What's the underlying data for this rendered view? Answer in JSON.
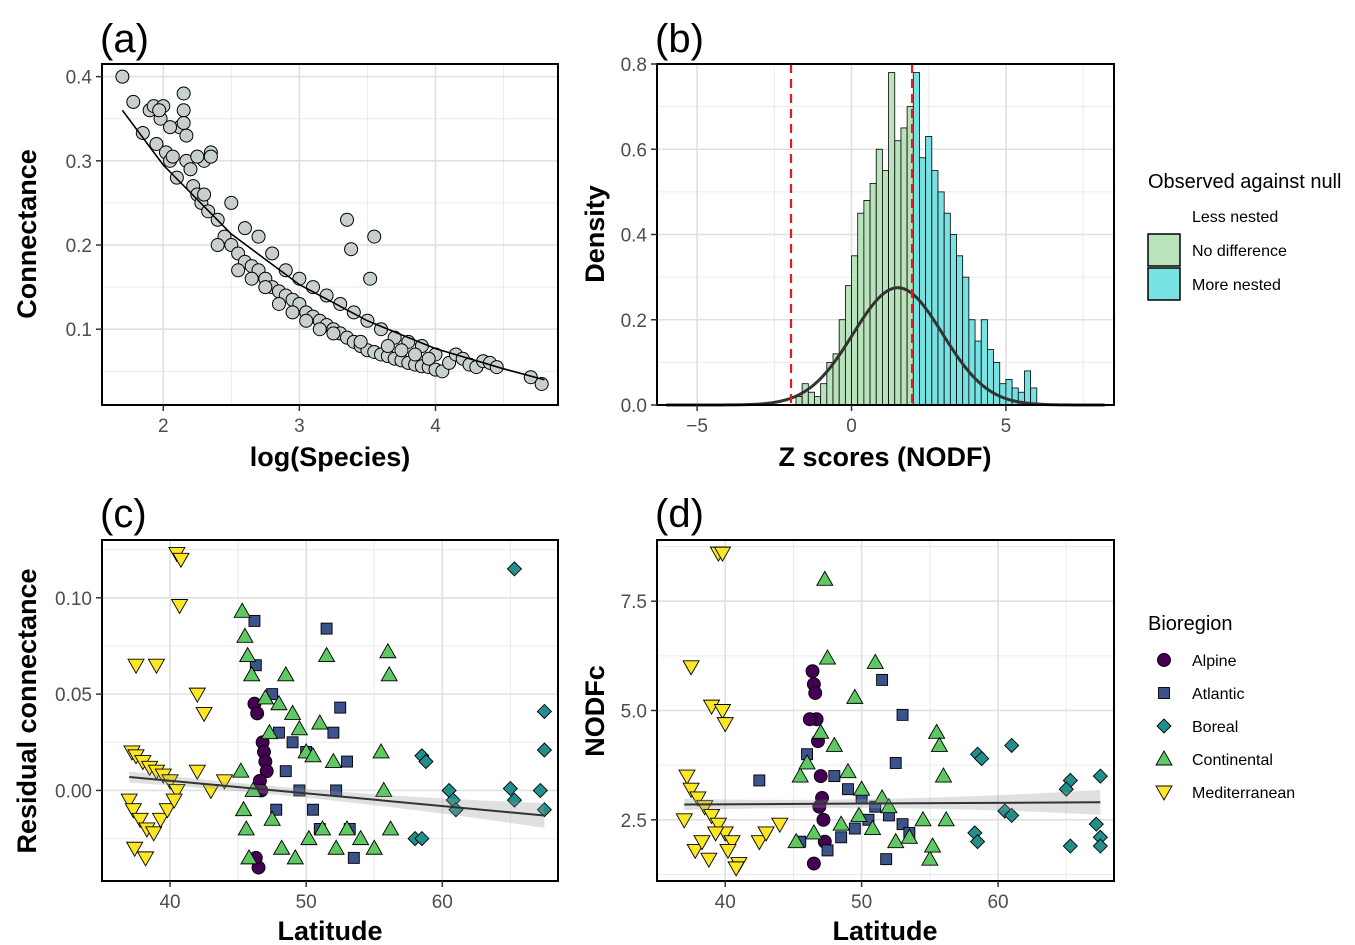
{
  "panels": {
    "a": {
      "tag": "(a)",
      "xlabel": "log(Species)",
      "ylabel": "Connectance",
      "xticks": [
        "2",
        "3",
        "4"
      ],
      "yticks": [
        "0.1",
        "0.2",
        "0.3",
        "0.4"
      ]
    },
    "b": {
      "tag": "(b)",
      "xlabel": "Z scores (NODF)",
      "ylabel": "Density",
      "xticks": [
        "−5",
        "0",
        "5"
      ],
      "yticks": [
        "0.0",
        "0.2",
        "0.4",
        "0.6",
        "0.8"
      ]
    },
    "c": {
      "tag": "(c)",
      "xlabel": "Latitude",
      "ylabel": "Residual connectance",
      "xticks": [
        "40",
        "50",
        "60"
      ],
      "yticks": [
        "0.00",
        "0.05",
        "0.10"
      ]
    },
    "d": {
      "tag": "(d)",
      "xlabel": "Latitude",
      "ylabel": "NODFc",
      "xticks": [
        "40",
        "50",
        "60"
      ],
      "yticks": [
        "2.5",
        "5.0",
        "7.5"
      ]
    }
  },
  "legend_null": {
    "title": "Observed against null",
    "items": [
      {
        "label": "Less nested",
        "color": "none"
      },
      {
        "label": "No difference",
        "color": "#b9e4bb"
      },
      {
        "label": "More nested",
        "color": "#78e1e1"
      }
    ]
  },
  "legend_bioregion": {
    "title": "Bioregion",
    "items": [
      {
        "label": "Alpine",
        "color": "#440154",
        "shape": "circle"
      },
      {
        "label": "Atlantic",
        "color": "#3b528b",
        "shape": "square"
      },
      {
        "label": "Boreal",
        "color": "#21908c",
        "shape": "diamond"
      },
      {
        "label": "Continental",
        "color": "#5ec962",
        "shape": "triangle-up"
      },
      {
        "label": "Mediterranean",
        "color": "#fde725",
        "shape": "triangle-down"
      }
    ]
  },
  "chart_data": [
    {
      "panel": "a",
      "type": "scatter",
      "xlabel": "log(Species)",
      "ylabel": "Connectance",
      "xlim": [
        1.55,
        4.9
      ],
      "ylim": [
        0.01,
        0.415
      ],
      "marker_color": "#c8d0cd",
      "fit": {
        "type": "curve",
        "x": [
          1.7,
          2.0,
          2.5,
          3.0,
          3.5,
          4.0,
          4.5,
          4.8
        ],
        "y": [
          0.36,
          0.295,
          0.213,
          0.153,
          0.11,
          0.077,
          0.053,
          0.04
        ]
      },
      "points": {
        "x": [
          1.7,
          1.78,
          1.85,
          1.9,
          1.93,
          1.95,
          1.98,
          2.0,
          2.02,
          2.05,
          2.07,
          2.1,
          2.12,
          2.15,
          2.17,
          2.2,
          2.22,
          2.25,
          2.28,
          2.3,
          2.33,
          2.35,
          2.4,
          2.45,
          2.5,
          2.55,
          2.6,
          2.65,
          2.7,
          2.75,
          2.8,
          2.85,
          2.9,
          2.95,
          3.0,
          3.05,
          3.1,
          3.15,
          3.2,
          3.25,
          3.3,
          3.35,
          3.4,
          3.45,
          3.5,
          3.55,
          3.6,
          3.65,
          3.7,
          3.75,
          3.8,
          3.85,
          3.9,
          3.95,
          4.0,
          4.05,
          4.1,
          4.15,
          4.2,
          4.25,
          4.3,
          4.35,
          4.4,
          4.45,
          4.7,
          4.78,
          1.97,
          2.15,
          2.15,
          2.17,
          2.25,
          2.35,
          3.35,
          3.55,
          3.52,
          3.38,
          2.05,
          2.3,
          2.5,
          2.6,
          2.7,
          2.8,
          2.9,
          3.0,
          3.1,
          3.2,
          3.3,
          3.4,
          3.5,
          3.6,
          3.7,
          3.8,
          3.9,
          4.0,
          2.4,
          2.55,
          2.65,
          2.75,
          2.85,
          2.95,
          3.05,
          3.15,
          3.25,
          3.45,
          3.65,
          3.75,
          3.85,
          3.95
        ],
        "y": [
          0.4,
          0.37,
          0.333,
          0.36,
          0.365,
          0.32,
          0.35,
          0.365,
          0.31,
          0.3,
          0.305,
          0.28,
          0.34,
          0.38,
          0.3,
          0.29,
          0.27,
          0.26,
          0.25,
          0.3,
          0.24,
          0.31,
          0.23,
          0.21,
          0.2,
          0.19,
          0.18,
          0.175,
          0.17,
          0.16,
          0.15,
          0.145,
          0.14,
          0.135,
          0.13,
          0.12,
          0.115,
          0.11,
          0.105,
          0.1,
          0.095,
          0.09,
          0.085,
          0.08,
          0.075,
          0.073,
          0.07,
          0.068,
          0.065,
          0.063,
          0.06,
          0.058,
          0.056,
          0.055,
          0.052,
          0.05,
          0.06,
          0.07,
          0.065,
          0.058,
          0.055,
          0.062,
          0.06,
          0.055,
          0.043,
          0.035,
          0.36,
          0.36,
          0.345,
          0.33,
          0.305,
          0.305,
          0.23,
          0.21,
          0.16,
          0.195,
          0.34,
          0.26,
          0.25,
          0.22,
          0.21,
          0.19,
          0.17,
          0.16,
          0.15,
          0.14,
          0.13,
          0.12,
          0.11,
          0.1,
          0.09,
          0.085,
          0.08,
          0.07,
          0.2,
          0.17,
          0.16,
          0.15,
          0.13,
          0.12,
          0.11,
          0.1,
          0.095,
          0.085,
          0.08,
          0.075,
          0.07,
          0.065
        ]
      }
    },
    {
      "panel": "b",
      "type": "bar",
      "xlabel": "Z scores (NODF)",
      "ylabel": "Density",
      "xlim": [
        -6.3,
        8.5
      ],
      "ylim": [
        0,
        0.8
      ],
      "bin_width": 0.2,
      "bin_starts": [
        -3.4,
        -3.2,
        -3.0,
        -2.8,
        -2.6,
        -2.4,
        -2.2,
        -2.0,
        -1.8,
        -1.6,
        -1.4,
        -1.2,
        -1.0,
        -0.8,
        -0.6,
        -0.4,
        -0.2,
        0.0,
        0.2,
        0.4,
        0.6,
        0.8,
        1.0,
        1.2,
        1.4,
        1.6,
        1.8,
        2.0,
        2.2,
        2.4,
        2.6,
        2.8,
        3.0,
        3.2,
        3.4,
        3.6,
        3.8,
        4.0,
        4.2,
        4.4,
        4.6,
        4.8,
        5.0,
        5.2,
        5.4,
        5.6,
        5.8
      ],
      "values": [
        0.0,
        0.0,
        0.0,
        0.0,
        0.0,
        0.0,
        0.0,
        0.0,
        0.02,
        0.05,
        0.03,
        0.02,
        0.05,
        0.1,
        0.12,
        0.2,
        0.28,
        0.35,
        0.45,
        0.48,
        0.52,
        0.6,
        0.55,
        0.78,
        0.62,
        0.65,
        0.7,
        0.78,
        0.58,
        0.63,
        0.55,
        0.5,
        0.45,
        0.4,
        0.35,
        0.3,
        0.2,
        0.15,
        0.2,
        0.13,
        0.1,
        0.05,
        0.06,
        0.04,
        0.03,
        0.08,
        0.04
      ],
      "groups": [
        {
          "name": "No difference",
          "color": "#b9e4bb",
          "x_max": 1.96
        },
        {
          "name": "More nested",
          "color": "#78e1e1",
          "x_min": 1.96
        }
      ],
      "normal_curve": {
        "mean": 1.5,
        "sd": 1.45
      },
      "reference_lines": [
        -1.96,
        1.96
      ]
    },
    {
      "panel": "c",
      "type": "scatter",
      "xlabel": "Latitude",
      "ylabel": "Residual connectance",
      "xlim": [
        35,
        68.5
      ],
      "ylim": [
        -0.047,
        0.13
      ],
      "fit": {
        "x": [
          37,
          67.5
        ],
        "y": [
          0.007,
          -0.013
        ]
      },
      "series": [
        {
          "name": "Alpine",
          "x": [
            46.2,
            46.4,
            46.5,
            46.8,
            46.9,
            47.0,
            47.1,
            46.3,
            46.6,
            46.7
          ],
          "y": [
            0.045,
            0.04,
            -0.04,
            0.025,
            0.02,
            0.015,
            0.01,
            -0.035,
            0.005,
            0.0
          ]
        },
        {
          "name": "Atlantic",
          "x": [
            46.2,
            46.3,
            47.5,
            48.0,
            49.0,
            50.0,
            51.5,
            52.0,
            52.5,
            53.0,
            53.2,
            53.5,
            48.5,
            49.5,
            50.5,
            51.0,
            52.2,
            47.8
          ],
          "y": [
            0.088,
            0.065,
            0.05,
            0.03,
            0.025,
            0.02,
            0.084,
            0.03,
            0.043,
            0.015,
            -0.02,
            -0.035,
            0.01,
            0.0,
            -0.01,
            -0.02,
            0.0,
            -0.01
          ]
        },
        {
          "name": "Boreal",
          "x": [
            65.3,
            67.5,
            67.5,
            67.5,
            58.5,
            58.8,
            60.5,
            60.8,
            61.0,
            65.0,
            65.3,
            67.2,
            58.0,
            58.5
          ],
          "y": [
            0.115,
            0.041,
            0.021,
            -0.01,
            0.018,
            0.015,
            0.0,
            -0.005,
            -0.01,
            0.001,
            -0.005,
            0.0,
            -0.025,
            -0.025
          ]
        },
        {
          "name": "Continental",
          "x": [
            45.3,
            45.5,
            45.7,
            46.0,
            47.0,
            47.3,
            48.0,
            48.5,
            49.0,
            49.5,
            50.0,
            50.5,
            51.0,
            51.5,
            52.0,
            56.0,
            56.1,
            55.5,
            55.7,
            56.2,
            45.2,
            45.4,
            45.6,
            45.8,
            46.1,
            47.5,
            48.2,
            49.2,
            50.2,
            51.2,
            52.2,
            53.0,
            54.0,
            55.0
          ],
          "y": [
            0.093,
            0.08,
            0.07,
            0.06,
            0.048,
            0.03,
            0.045,
            0.06,
            0.04,
            0.032,
            0.02,
            0.018,
            0.035,
            0.07,
            0.015,
            0.072,
            0.06,
            0.02,
            0.0,
            -0.02,
            0.01,
            -0.01,
            -0.02,
            -0.035,
            0.0,
            -0.015,
            -0.03,
            -0.035,
            -0.025,
            -0.02,
            -0.03,
            -0.02,
            -0.025,
            -0.03
          ]
        },
        {
          "name": "Mediterranean",
          "x": [
            40.5,
            40.8,
            40.7,
            37.5,
            39.0,
            42.0,
            42.5,
            37.2,
            37.5,
            38.0,
            38.5,
            39.0,
            39.5,
            40.0,
            40.5,
            37.0,
            37.3,
            37.8,
            38.3,
            38.8,
            39.3,
            39.8,
            40.3,
            42.0,
            43.0,
            44.0,
            37.4,
            38.2
          ],
          "y": [
            0.123,
            0.12,
            0.096,
            0.065,
            0.065,
            0.05,
            0.04,
            0.02,
            0.018,
            0.015,
            0.012,
            0.01,
            0.008,
            0.005,
            0.0,
            -0.005,
            -0.01,
            -0.015,
            -0.02,
            -0.022,
            -0.015,
            -0.01,
            -0.005,
            0.01,
            0.0,
            0.005,
            -0.03,
            -0.035
          ]
        }
      ]
    },
    {
      "panel": "d",
      "type": "scatter",
      "xlabel": "Latitude",
      "ylabel": "NODFc",
      "xlim": [
        35,
        68.5
      ],
      "ylim": [
        1.1,
        8.9
      ],
      "fit": {
        "x": [
          37,
          67.5
        ],
        "y": [
          2.85,
          2.9
        ]
      },
      "series": [
        {
          "name": "Alpine",
          "x": [
            46.4,
            46.5,
            46.6,
            46.7,
            46.8,
            47.0,
            47.1,
            47.2,
            47.3,
            46.2,
            46.5,
            46.9
          ],
          "y": [
            5.9,
            5.6,
            5.4,
            4.8,
            4.3,
            3.5,
            3.0,
            2.5,
            2.0,
            4.8,
            1.5,
            2.8
          ]
        },
        {
          "name": "Atlantic",
          "x": [
            51.5,
            53.0,
            42.5,
            46.0,
            48.0,
            49.0,
            50.0,
            51.0,
            52.0,
            53.0,
            53.5,
            45.5,
            47.5,
            48.5,
            49.5,
            50.5,
            51.8,
            52.5
          ],
          "y": [
            5.7,
            4.9,
            3.4,
            4.0,
            3.5,
            3.2,
            3.0,
            2.8,
            2.6,
            2.4,
            2.2,
            2.0,
            1.8,
            2.1,
            2.3,
            2.5,
            1.6,
            3.8
          ]
        },
        {
          "name": "Boreal",
          "x": [
            61.0,
            58.5,
            58.8,
            65.3,
            67.5,
            60.5,
            61.0,
            65.0,
            67.2,
            67.5,
            58.3,
            58.5,
            65.3,
            67.5
          ],
          "y": [
            4.2,
            4.0,
            3.9,
            3.4,
            3.5,
            2.7,
            2.6,
            3.2,
            2.4,
            2.1,
            2.2,
            2.0,
            1.9,
            1.9
          ]
        },
        {
          "name": "Continental",
          "x": [
            47.3,
            47.5,
            51.0,
            49.5,
            45.5,
            46.0,
            47.0,
            48.0,
            49.0,
            50.0,
            51.5,
            52.0,
            55.5,
            55.7,
            56.0,
            56.2,
            45.2,
            46.5,
            48.5,
            49.8,
            50.8,
            52.5,
            53.5,
            54.5,
            55.0,
            55.2
          ],
          "y": [
            8.0,
            6.2,
            6.1,
            5.3,
            3.5,
            3.8,
            4.5,
            4.2,
            3.6,
            3.2,
            3.0,
            2.8,
            4.5,
            4.2,
            3.5,
            2.5,
            2.0,
            2.2,
            2.4,
            2.6,
            2.3,
            2.0,
            2.1,
            2.5,
            1.6,
            1.9
          ]
        },
        {
          "name": "Mediterranean",
          "x": [
            39.5,
            39.8,
            37.5,
            39.0,
            39.8,
            40.0,
            37.2,
            37.5,
            38.0,
            38.5,
            39.0,
            39.5,
            40.0,
            40.5,
            41.0,
            42.5,
            43.0,
            44.0,
            37.0,
            37.8,
            38.3,
            38.8,
            39.3,
            40.2,
            40.8
          ],
          "y": [
            8.6,
            8.6,
            6.0,
            5.1,
            5.0,
            4.7,
            3.5,
            3.2,
            3.0,
            2.8,
            2.6,
            2.4,
            2.2,
            2.0,
            1.5,
            2.0,
            2.2,
            2.4,
            2.5,
            1.8,
            2.0,
            1.6,
            2.2,
            1.8,
            1.4
          ]
        }
      ]
    }
  ]
}
